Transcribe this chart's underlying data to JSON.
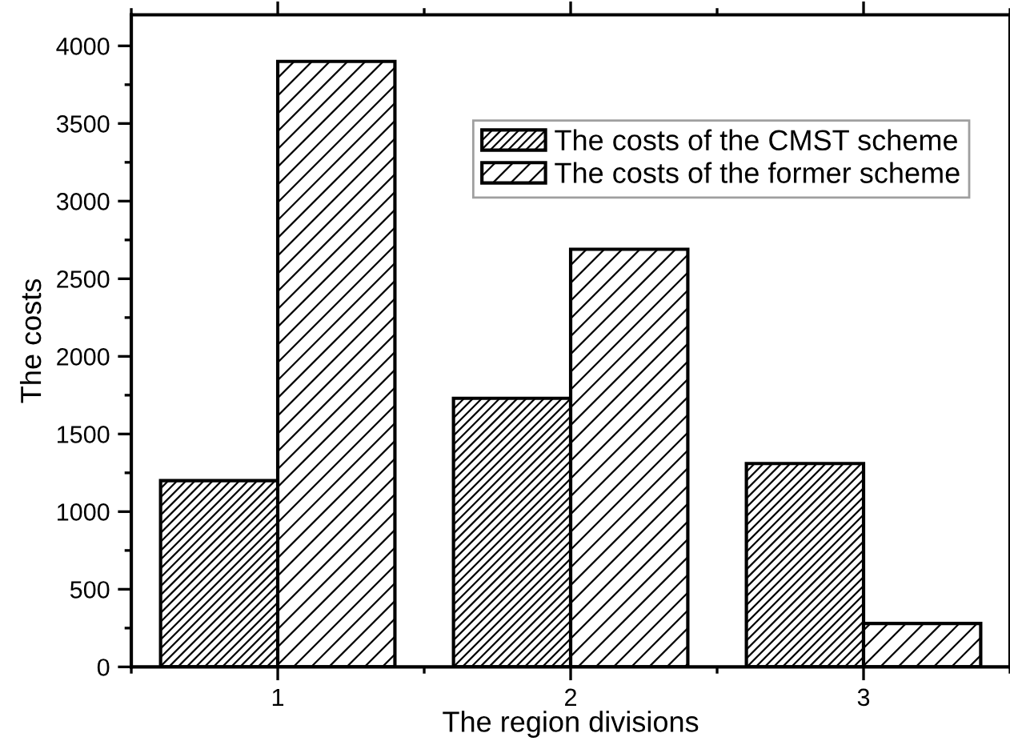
{
  "chart_data": {
    "type": "bar",
    "xlabel": "The region divisions",
    "ylabel": "The costs",
    "categories": [
      "1",
      "2",
      "3"
    ],
    "series": [
      {
        "name": "The costs of the CMST scheme",
        "color": "#000000",
        "values": [
          1200,
          1730,
          1310
        ]
      },
      {
        "name": "The costs of the former scheme",
        "color": "#000000",
        "values": [
          3900,
          2690,
          280
        ]
      }
    ],
    "ylim": [
      0,
      4200
    ],
    "yticks": [
      0,
      500,
      1000,
      1500,
      2000,
      2500,
      3000,
      3500,
      4000
    ],
    "legend": "top right",
    "grid": false
  }
}
